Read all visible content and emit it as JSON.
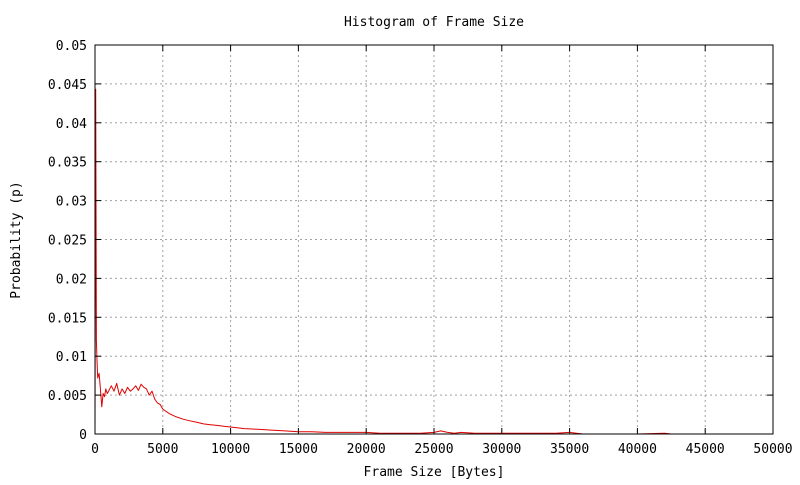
{
  "chart_data": {
    "type": "line",
    "title": "Histogram of Frame Size",
    "xlabel": "Frame Size [Bytes]",
    "ylabel": "Probability (p)",
    "xlim": [
      0,
      50000
    ],
    "ylim": [
      0,
      0.05
    ],
    "x_ticks": [
      0,
      5000,
      10000,
      15000,
      20000,
      25000,
      30000,
      35000,
      40000,
      45000,
      50000
    ],
    "x_tick_labels": [
      "0",
      "5000",
      "10000",
      "15000",
      "20000",
      "25000",
      "30000",
      "35000",
      "40000",
      "45000",
      "50000"
    ],
    "y_ticks": [
      0,
      0.005,
      0.01,
      0.015,
      0.02,
      0.025,
      0.03,
      0.035,
      0.04,
      0.045,
      0.05
    ],
    "y_tick_labels": [
      "0",
      "0.005",
      "0.01",
      "0.015",
      "0.02",
      "0.025",
      "0.03",
      "0.035",
      "0.04",
      "0.045",
      "0.05"
    ],
    "grid": true,
    "legend": "none",
    "series": [
      {
        "color": "#e00000",
        "x": [
          0,
          50,
          100,
          150,
          200,
          300,
          400,
          500,
          600,
          700,
          800,
          900,
          1000,
          1200,
          1400,
          1600,
          1800,
          2000,
          2200,
          2400,
          2600,
          2800,
          3000,
          3200,
          3400,
          3600,
          3800,
          4000,
          4200,
          4400,
          4600,
          4800,
          5000,
          5500,
          6000,
          6500,
          7000,
          7500,
          8000,
          8500,
          9000,
          9500,
          10000,
          11000,
          12000,
          13000,
          14000,
          15000,
          16000,
          17000,
          18000,
          19000,
          20000,
          21000,
          22000,
          23000,
          24000,
          25000,
          25500,
          26000,
          26500,
          27000,
          28000,
          29000,
          30000,
          31000,
          32000,
          33000,
          34000,
          35000,
          35500,
          36000,
          38000,
          40000,
          42000,
          42500
        ],
        "y": [
          0.0005,
          0.0443,
          0.012,
          0.0095,
          0.0072,
          0.0078,
          0.0058,
          0.0035,
          0.0052,
          0.0048,
          0.0058,
          0.0052,
          0.0055,
          0.0062,
          0.0055,
          0.0065,
          0.005,
          0.0058,
          0.0052,
          0.006,
          0.0055,
          0.0058,
          0.0062,
          0.0056,
          0.0064,
          0.006,
          0.0058,
          0.005,
          0.0055,
          0.0045,
          0.004,
          0.0038,
          0.0032,
          0.0026,
          0.0022,
          0.0019,
          0.0017,
          0.0015,
          0.0013,
          0.0012,
          0.0011,
          0.001,
          0.0009,
          0.0007,
          0.0006,
          0.0005,
          0.0004,
          0.0003,
          0.0003,
          0.0002,
          0.0002,
          0.0002,
          0.0002,
          0.0001,
          0.0001,
          0.0001,
          0.0001,
          0.0002,
          0.0004,
          0.0002,
          0.0001,
          0.0002,
          0.0001,
          0.0001,
          0.0001,
          0.0001,
          0.0001,
          0.0001,
          0.0001,
          0.0002,
          0.0001,
          0.0,
          0.0,
          0.0,
          0.0001,
          0.0
        ]
      }
    ]
  }
}
